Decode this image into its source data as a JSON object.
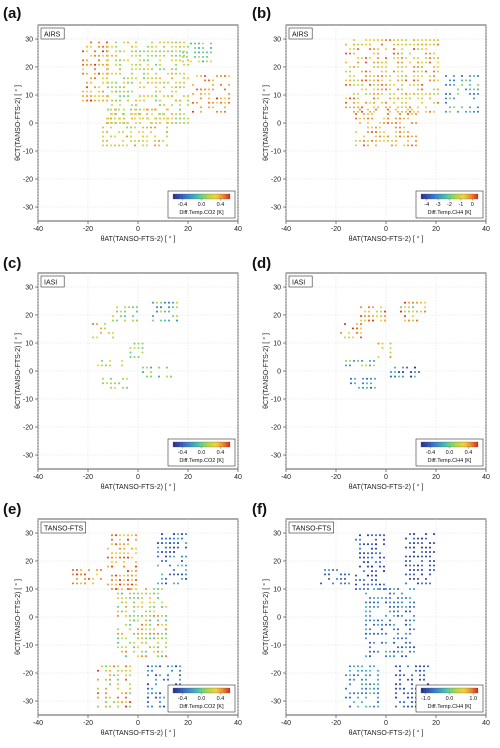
{
  "figure": {
    "x_axis_label": "θAT(TANSO-FTS-2)  [ ° ]",
    "y_axis_label": "θCT(TANSO-FTS-2)  [ ° ]"
  },
  "chart_data": [
    {
      "panel": "(a)",
      "type": "scatter",
      "instrument": "AIRS",
      "xlim": [
        -40,
        40
      ],
      "ylim": [
        -35,
        35
      ],
      "xticks": [
        -40,
        -20,
        0,
        20,
        40
      ],
      "yticks": [
        -30,
        -20,
        -10,
        0,
        10,
        20,
        30
      ],
      "grid": true,
      "colorbar": {
        "label": "Diff.Temp.CO2 [K]",
        "ticks": [
          "-0.4",
          "0.0",
          "0.4"
        ],
        "range": [
          -0.6,
          0.6
        ],
        "placement": "bottom-right"
      },
      "point_groups": [
        {
          "x_range": [
            -22,
            -12
          ],
          "y_range": [
            8,
            30
          ],
          "color_value_range": [
            0.25,
            0.6
          ]
        },
        {
          "x_range": [
            -12,
            20
          ],
          "y_range": [
            0,
            30
          ],
          "color_value_range": [
            0.0,
            0.4
          ]
        },
        {
          "x_range": [
            -14,
            12
          ],
          "y_range": [
            -8,
            6
          ],
          "color_value_range": [
            0.05,
            0.45
          ]
        },
        {
          "x_range": [
            22,
            38
          ],
          "y_range": [
            4,
            18
          ],
          "color_value_range": [
            0.3,
            0.6
          ]
        },
        {
          "x_range": [
            18,
            30
          ],
          "y_range": [
            22,
            30
          ],
          "color_value_range": [
            -0.2,
            0.3
          ]
        }
      ]
    },
    {
      "panel": "(b)",
      "type": "scatter",
      "instrument": "AIRS",
      "xlim": [
        -40,
        40
      ],
      "ylim": [
        -35,
        35
      ],
      "xticks": [
        -40,
        -20,
        0,
        20,
        40
      ],
      "yticks": [
        -30,
        -20,
        -10,
        0,
        10,
        20,
        30
      ],
      "grid": true,
      "colorbar": {
        "label": "Diff.Temp.CH4 [K]",
        "ticks": [
          "-4",
          "-3",
          "-2",
          "-1",
          "0"
        ],
        "range": [
          -4.5,
          0.5
        ],
        "placement": "bottom-right"
      },
      "point_groups": [
        {
          "x_range": [
            -16,
            22
          ],
          "y_range": [
            4,
            30
          ],
          "color_value_range": [
            -1.5,
            0.3
          ]
        },
        {
          "x_range": [
            -12,
            12
          ],
          "y_range": [
            -8,
            6
          ],
          "color_value_range": [
            -1.2,
            0.3
          ]
        },
        {
          "x_range": [
            24,
            38
          ],
          "y_range": [
            4,
            18
          ],
          "color_value_range": [
            -4.0,
            -1.5
          ]
        }
      ]
    },
    {
      "panel": "(c)",
      "type": "scatter",
      "instrument": "IASI",
      "xlim": [
        -40,
        40
      ],
      "ylim": [
        -35,
        35
      ],
      "xticks": [
        -40,
        -20,
        0,
        20,
        40
      ],
      "yticks": [
        -30,
        -20,
        -10,
        0,
        10,
        20,
        30
      ],
      "grid": true,
      "colorbar": {
        "label": "Diff.Temp.CO2 [K]",
        "ticks": [
          "-0.4",
          "0.0",
          "0.4"
        ],
        "range": [
          -0.6,
          0.6
        ],
        "placement": "bottom-right"
      },
      "point_groups": [
        {
          "x_range": [
            -10,
            0
          ],
          "y_range": [
            18,
            23
          ],
          "color_value_range": [
            -0.1,
            0.3
          ]
        },
        {
          "x_range": [
            6,
            16
          ],
          "y_range": [
            18,
            25
          ],
          "color_value_range": [
            -0.4,
            0.2
          ]
        },
        {
          "x_range": [
            -18,
            -10
          ],
          "y_range": [
            12,
            17
          ],
          "color_value_range": [
            0.1,
            0.5
          ]
        },
        {
          "x_range": [
            -16,
            -4
          ],
          "y_range": [
            2,
            5
          ],
          "color_value_range": [
            0.0,
            0.4
          ]
        },
        {
          "x_range": [
            2,
            14
          ],
          "y_range": [
            -2,
            2
          ],
          "color_value_range": [
            -0.2,
            0.2
          ]
        },
        {
          "x_range": [
            -14,
            -4
          ],
          "y_range": [
            -6,
            -2
          ],
          "color_value_range": [
            0.0,
            0.3
          ]
        },
        {
          "x_range": [
            -3,
            3
          ],
          "y_range": [
            5,
            10
          ],
          "color_value_range": [
            -0.1,
            0.2
          ]
        }
      ]
    },
    {
      "panel": "(d)",
      "type": "scatter",
      "instrument": "IASI",
      "xlim": [
        -40,
        40
      ],
      "ylim": [
        -35,
        35
      ],
      "xticks": [
        -40,
        -20,
        0,
        20,
        40
      ],
      "yticks": [
        -30,
        -20,
        -10,
        0,
        10,
        20,
        30
      ],
      "grid": true,
      "colorbar": {
        "label": "Diff.Temp.CH4 [K]",
        "ticks": [
          "-0.4",
          "0.0",
          "0.4"
        ],
        "range": [
          -0.6,
          0.6
        ],
        "placement": "bottom-right"
      },
      "point_groups": [
        {
          "x_range": [
            -10,
            0
          ],
          "y_range": [
            18,
            23
          ],
          "color_value_range": [
            0.2,
            0.6
          ]
        },
        {
          "x_range": [
            6,
            16
          ],
          "y_range": [
            18,
            25
          ],
          "color_value_range": [
            0.0,
            0.6
          ]
        },
        {
          "x_range": [
            -18,
            -10
          ],
          "y_range": [
            12,
            17
          ],
          "color_value_range": [
            0.2,
            0.6
          ]
        },
        {
          "x_range": [
            -16,
            -4
          ],
          "y_range": [
            2,
            5
          ],
          "color_value_range": [
            -0.3,
            0.4
          ]
        },
        {
          "x_range": [
            2,
            14
          ],
          "y_range": [
            -2,
            2
          ],
          "color_value_range": [
            -0.6,
            0.0
          ]
        },
        {
          "x_range": [
            -14,
            -4
          ],
          "y_range": [
            -6,
            -2
          ],
          "color_value_range": [
            -0.5,
            0.0
          ]
        },
        {
          "x_range": [
            -3,
            3
          ],
          "y_range": [
            5,
            10
          ],
          "color_value_range": [
            0.1,
            0.5
          ]
        }
      ]
    },
    {
      "panel": "(e)",
      "type": "scatter",
      "instrument": "TANSO-FTS",
      "xlim": [
        -40,
        40
      ],
      "ylim": [
        -35,
        35
      ],
      "xticks": [
        -40,
        -20,
        0,
        20,
        40
      ],
      "yticks": [
        -30,
        -20,
        -10,
        0,
        10,
        20,
        30
      ],
      "grid": true,
      "colorbar": {
        "label": "Diff.Temp.CO2 [K]",
        "ticks": [
          "-0.4",
          "0.0",
          "0.4"
        ],
        "range": [
          -0.6,
          0.6
        ],
        "placement": "bottom-right"
      },
      "point_groups": [
        {
          "x_range": [
            -12,
            0
          ],
          "y_range": [
            10,
            30
          ],
          "color_value_range": [
            0.15,
            0.6
          ]
        },
        {
          "x_range": [
            8,
            20
          ],
          "y_range": [
            12,
            30
          ],
          "color_value_range": [
            -0.6,
            0.0
          ]
        },
        {
          "x_range": [
            -8,
            12
          ],
          "y_range": [
            -14,
            10
          ],
          "color_value_range": [
            -0.1,
            0.5
          ]
        },
        {
          "x_range": [
            -16,
            -2
          ],
          "y_range": [
            -32,
            -16
          ],
          "color_value_range": [
            0.0,
            0.6
          ]
        },
        {
          "x_range": [
            4,
            18
          ],
          "y_range": [
            -32,
            -16
          ],
          "color_value_range": [
            -0.6,
            -0.1
          ]
        },
        {
          "x_range": [
            -26,
            -14
          ],
          "y_range": [
            12,
            18
          ],
          "color_value_range": [
            0.3,
            0.6
          ]
        }
      ]
    },
    {
      "panel": "(f)",
      "type": "scatter",
      "instrument": "TANSO-FTS",
      "xlim": [
        -40,
        40
      ],
      "ylim": [
        -35,
        35
      ],
      "xticks": [
        -40,
        -20,
        0,
        20,
        40
      ],
      "yticks": [
        -30,
        -20,
        -10,
        0,
        10,
        20,
        30
      ],
      "grid": true,
      "colorbar": {
        "label": "Diff.Temp.CH4 [K]",
        "ticks": [
          "-1.0",
          "0.0",
          "1.0"
        ],
        "range": [
          -1.2,
          1.2
        ],
        "placement": "bottom-right"
      },
      "point_groups": [
        {
          "x_range": [
            -12,
            0
          ],
          "y_range": [
            10,
            30
          ],
          "color_value_range": [
            -1.2,
            -0.6
          ]
        },
        {
          "x_range": [
            8,
            20
          ],
          "y_range": [
            12,
            30
          ],
          "color_value_range": [
            -1.2,
            -0.7
          ]
        },
        {
          "x_range": [
            -8,
            12
          ],
          "y_range": [
            -14,
            10
          ],
          "color_value_range": [
            -1.0,
            -0.2
          ]
        },
        {
          "x_range": [
            -16,
            -2
          ],
          "y_range": [
            -32,
            -16
          ],
          "color_value_range": [
            -0.8,
            0.0
          ]
        },
        {
          "x_range": [
            4,
            18
          ],
          "y_range": [
            -32,
            -16
          ],
          "color_value_range": [
            -1.2,
            -0.6
          ]
        },
        {
          "x_range": [
            -26,
            -14
          ],
          "y_range": [
            12,
            18
          ],
          "color_value_range": [
            -1.0,
            -0.4
          ]
        }
      ]
    }
  ]
}
